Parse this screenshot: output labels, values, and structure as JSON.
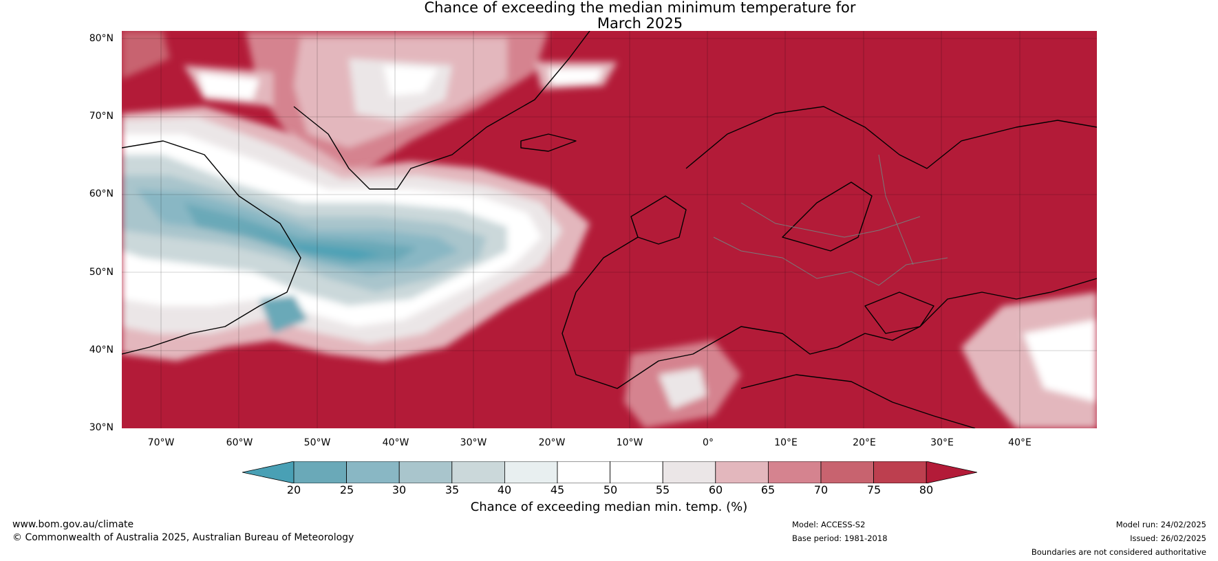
{
  "title": {
    "line1": "Chance of exceeding the median minimum temperature for",
    "line2": "March 2025"
  },
  "map": {
    "region": "North Atlantic and Europe",
    "lon_range": [
      -75,
      50
    ],
    "lat_range": [
      30,
      81
    ],
    "lat_ticks": [
      "80°N",
      "70°N",
      "60°N",
      "50°N",
      "40°N",
      "30°N"
    ],
    "lon_ticks": [
      "70°W",
      "60°W",
      "50°W",
      "40°W",
      "30°W",
      "20°W",
      "10°W",
      "0°",
      "10°E",
      "20°E",
      "30°E",
      "40°E"
    ],
    "ocean_fill_color": "#b31b38",
    "highlights": [
      "Cool (below 50%) anomaly over Labrador Sea and NW Atlantic around 45–60°N, 35–65°W",
      "Near-neutral bands over southern Greenland and Baffin Bay",
      "Warm (>80%) over most of Europe, the eastern Atlantic and the Arctic"
    ]
  },
  "colorbar": {
    "tick_labels": [
      "20",
      "25",
      "30",
      "35",
      "40",
      "45",
      "50",
      "55",
      "60",
      "65",
      "70",
      "75",
      "80"
    ],
    "colors": [
      "#49a0b5",
      "#6aa9b8",
      "#89b7c4",
      "#a9c5cc",
      "#cbd8da",
      "#e8eff0",
      "#ffffff",
      "#ffffff",
      "#ebe6e7",
      "#e3b7bd",
      "#d5838f",
      "#c8636f",
      "#bd3f4f",
      "#b31b38"
    ],
    "label": "Chance of exceeding median min. temp. (%)"
  },
  "footer": {
    "website": "www.bom.gov.au/climate",
    "copyright": "© Commonwealth of Australia 2025, Australian Bureau of Meteorology",
    "model": "Model: ACCESS-S2",
    "base_period": "Base period: 1981-2018",
    "model_run": "Model run: 24/02/2025",
    "issued": "Issued: 26/02/2025",
    "disclaimer": "Boundaries are not considered authoritative"
  }
}
